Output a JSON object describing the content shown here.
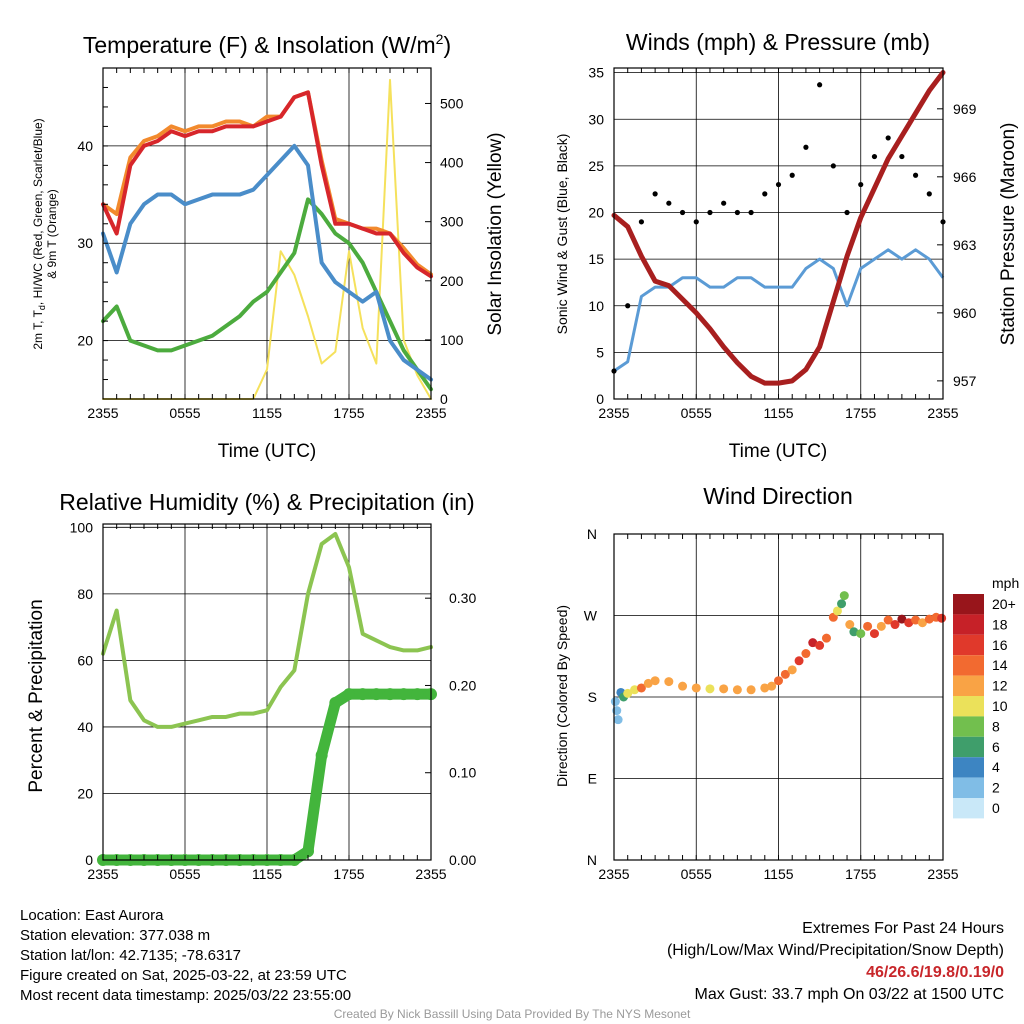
{
  "panels": {
    "temperature": {
      "title": "Temperature (F) & Insolation (W/m",
      "title_sup": "2",
      "title_end": ")",
      "ylabel_left_1": "2m T, T",
      "ylabel_left_sub": "d",
      "ylabel_left_2": ", HI/WC (Red, Green, Scarlet/Blue)",
      "ylabel_left_3": "& 9m T (Orange)",
      "ylabel_right": "Solar Insolation (Yellow)",
      "xlabel": "Time (UTC)"
    },
    "winds": {
      "title": "Winds (mph) & Pressure (mb)",
      "ylabel_left": "Sonic Wind & Gust (Blue, Black)",
      "ylabel_right": "Station Pressure (Maroon)",
      "xlabel": "Time (UTC)"
    },
    "humidity": {
      "title": "Relative Humidity (%) & Precipitation (in)",
      "ylabel_left": "Percent & Precipitation"
    },
    "direction": {
      "title": "Wind Direction",
      "ylabel_left": "Direction (Colored By Speed)",
      "colorbar_title": "mph",
      "colorbar_labels": [
        "20+",
        "18",
        "16",
        "14",
        "12",
        "10",
        "8",
        "6",
        "4",
        "2",
        "0"
      ],
      "colorbar_colors": [
        "#98151b",
        "#c62128",
        "#e0392b",
        "#f26a30",
        "#f9a345",
        "#ebe15a",
        "#72bf4e",
        "#3f9e6b",
        "#3d85c2",
        "#80bde6",
        "#c9e8f8"
      ]
    }
  },
  "footer": {
    "location": "Location: East Aurora",
    "elevation": "Station elevation: 377.038 m",
    "latlon": "Station lat/lon: 42.7135; -78.6317",
    "created": "Figure created on Sat, 2025-03-22, at 23:59 UTC",
    "recent": "Most recent data timestamp: 2025/03/22 23:55:00",
    "extremes_title": "Extremes For Past 24 Hours",
    "extremes_legend": "(High/Low/Max Wind/Precipitation/Snow Depth)",
    "extremes_values": "46/26.6/19.8/0.19/0",
    "max_gust": "Max Gust: 33.7 mph On 03/22 at 1500 UTC",
    "credit": "Created By Nick Bassill Using Data Provided By The NYS Mesonet"
  },
  "chart_data": [
    {
      "type": "line",
      "title": "Temperature (F) & Insolation (W/m2)",
      "xlabel": "Time (UTC)",
      "ylabel": "2m T, Td, HI/WC (Red, Green, Scarlet/Blue) & 9m T (Orange)",
      "y2label": "Solar Insolation (Yellow)",
      "x_ticks": [
        "2355",
        "0555",
        "1155",
        "1755",
        "2355"
      ],
      "y_ticks": [
        20,
        30,
        40
      ],
      "y2_ticks": [
        0,
        100,
        200,
        300,
        400,
        500
      ],
      "ylim": [
        14,
        48
      ],
      "y2lim": [
        0,
        560
      ],
      "grid": true,
      "x_hours": [
        0,
        1,
        2,
        3,
        4,
        5,
        6,
        7,
        8,
        9,
        10,
        11,
        12,
        13,
        14,
        15,
        16,
        17,
        18,
        19,
        20,
        21,
        22,
        23,
        24
      ],
      "series": [
        {
          "name": "2m T",
          "axis": "left",
          "color": "#d7262b",
          "values": [
            34,
            31,
            38,
            40,
            40.5,
            41.5,
            41,
            41.5,
            41.5,
            42,
            42,
            42,
            42.5,
            43,
            45,
            45.5,
            38,
            32,
            32,
            31.5,
            31,
            31,
            29,
            27.5,
            26.6
          ]
        },
        {
          "name": "9m T",
          "axis": "left",
          "color": "#f28a2d",
          "values": [
            34,
            33,
            38.8,
            40.5,
            41,
            42,
            41.5,
            42,
            42,
            42.5,
            42.5,
            42,
            43,
            43,
            45,
            45.5,
            38.5,
            32.5,
            32,
            31.5,
            31.5,
            31,
            29.5,
            27.8,
            26.8
          ]
        },
        {
          "name": "WC",
          "axis": "left",
          "color": "#4a8dc9",
          "values": [
            31,
            27,
            32,
            34,
            35,
            35,
            34,
            34.5,
            35,
            35,
            35,
            35.5,
            37,
            38.5,
            40,
            38,
            28,
            26,
            25,
            24,
            25,
            20,
            18,
            17,
            16
          ]
        },
        {
          "name": "Td",
          "axis": "left",
          "color": "#4cab3e",
          "values": [
            22,
            23.5,
            20,
            19.5,
            19,
            19,
            19.5,
            20,
            20.5,
            21.5,
            22.5,
            24,
            25,
            27,
            29,
            34.5,
            33,
            31,
            30,
            28,
            25,
            22,
            19,
            17,
            15
          ]
        },
        {
          "name": "Solar",
          "axis": "right",
          "color": "#f5e15c",
          "values": [
            0,
            0,
            0,
            0,
            0,
            0,
            0,
            0,
            0,
            0,
            0,
            0,
            50,
            250,
            210,
            140,
            60,
            80,
            250,
            120,
            60,
            540,
            100,
            40,
            0
          ]
        }
      ]
    },
    {
      "type": "line",
      "title": "Winds (mph) & Pressure (mb)",
      "xlabel": "Time (UTC)",
      "ylabel": "Sonic Wind & Gust (Blue, Black)",
      "y2label": "Station Pressure (Maroon)",
      "x_ticks": [
        "2355",
        "0555",
        "1155",
        "1755",
        "2355"
      ],
      "y_ticks": [
        0,
        5,
        10,
        15,
        20,
        25,
        30,
        35
      ],
      "y2_ticks": [
        957,
        960,
        963,
        966,
        969
      ],
      "ylim": [
        0,
        35.5
      ],
      "y2lim": [
        956.2,
        970.8
      ],
      "grid": true,
      "x_hours": [
        0,
        1,
        2,
        3,
        4,
        5,
        6,
        7,
        8,
        9,
        10,
        11,
        12,
        13,
        14,
        15,
        16,
        17,
        18,
        19,
        20,
        21,
        22,
        23,
        24
      ],
      "series": [
        {
          "name": "Sonic Wind",
          "axis": "left",
          "color": "#5b9bd5",
          "values": [
            3,
            4,
            11,
            12,
            12,
            13,
            13,
            12,
            12,
            13,
            13,
            12,
            12,
            12,
            14,
            15,
            14,
            10,
            14,
            15,
            16,
            15,
            16,
            15,
            13
          ]
        },
        {
          "name": "Gust",
          "axis": "left",
          "color": "#000000",
          "values": [
            3,
            10,
            19,
            22,
            21,
            20,
            19,
            20,
            21,
            20,
            20,
            22,
            23,
            24,
            27,
            33.7,
            25,
            20,
            23,
            26,
            28,
            26,
            24,
            22,
            19
          ]
        },
        {
          "name": "Pressure",
          "axis": "right",
          "color": "#a81f1f",
          "values": [
            964.3,
            963.8,
            962.5,
            961.4,
            961.2,
            960.6,
            960.0,
            959.3,
            958.5,
            957.8,
            957.2,
            956.9,
            956.9,
            957.0,
            957.5,
            958.5,
            960.5,
            962.5,
            964.2,
            965.5,
            966.8,
            967.8,
            968.8,
            969.8,
            970.6
          ]
        }
      ]
    },
    {
      "type": "line",
      "title": "Relative Humidity (%) & Precipitation (in)",
      "ylabel": "Percent & Precipitation",
      "x_ticks": [
        "2355",
        "0555",
        "1155",
        "1755",
        "2355"
      ],
      "y_ticks": [
        0,
        20,
        40,
        60,
        80,
        100
      ],
      "y2_ticks": [
        "0.00",
        "0.10",
        "0.20",
        "0.30"
      ],
      "ylim": [
        0,
        101
      ],
      "y2lim": [
        0,
        0.385
      ],
      "grid": true,
      "x_hours": [
        0,
        1,
        2,
        3,
        4,
        5,
        6,
        7,
        8,
        9,
        10,
        11,
        12,
        13,
        14,
        15,
        16,
        17,
        18,
        19,
        20,
        21,
        22,
        23,
        24
      ],
      "series": [
        {
          "name": "Relative Humidity",
          "axis": "left",
          "color": "#8cc451",
          "values": [
            62,
            75,
            48,
            42,
            40,
            40,
            41,
            42,
            43,
            43,
            44,
            44,
            45,
            52,
            57,
            80,
            95,
            98,
            88,
            68,
            66,
            64,
            63,
            63,
            64
          ]
        },
        {
          "name": "Precipitation",
          "axis": "right",
          "color": "#43b53c",
          "values": [
            0,
            0,
            0,
            0,
            0,
            0,
            0,
            0,
            0,
            0,
            0,
            0,
            0,
            0,
            0,
            0.01,
            0.12,
            0.18,
            0.19,
            0.19,
            0.19,
            0.19,
            0.19,
            0.19,
            0.19
          ]
        }
      ]
    },
    {
      "type": "scatter",
      "title": "Wind Direction",
      "ylabel": "Direction (Colored By Speed)",
      "x_ticks": [
        "2355",
        "0555",
        "1155",
        "1755",
        "2355"
      ],
      "y_ticks": [
        "N",
        "E",
        "S",
        "W",
        "N"
      ],
      "ylim": [
        0,
        360
      ],
      "colorbar": {
        "title": "mph",
        "labels": [
          "20+",
          "18",
          "16",
          "14",
          "12",
          "10",
          "8",
          "6",
          "4",
          "2",
          "0"
        ]
      },
      "points": [
        {
          "x": 0.1,
          "y": 175,
          "speed": 2
        },
        {
          "x": 0.2,
          "y": 165,
          "speed": 3
        },
        {
          "x": 0.3,
          "y": 155,
          "speed": 2
        },
        {
          "x": 0.5,
          "y": 185,
          "speed": 4
        },
        {
          "x": 0.7,
          "y": 180,
          "speed": 7
        },
        {
          "x": 1.0,
          "y": 184,
          "speed": 10
        },
        {
          "x": 1.5,
          "y": 188,
          "speed": 11
        },
        {
          "x": 2.0,
          "y": 190,
          "speed": 14
        },
        {
          "x": 2.5,
          "y": 195,
          "speed": 12
        },
        {
          "x": 3.0,
          "y": 198,
          "speed": 12
        },
        {
          "x": 4.0,
          "y": 197,
          "speed": 12
        },
        {
          "x": 5.0,
          "y": 192,
          "speed": 12
        },
        {
          "x": 6.0,
          "y": 190,
          "speed": 12
        },
        {
          "x": 7.0,
          "y": 189,
          "speed": 11
        },
        {
          "x": 8.0,
          "y": 189,
          "speed": 12
        },
        {
          "x": 9.0,
          "y": 188,
          "speed": 12
        },
        {
          "x": 10.0,
          "y": 188,
          "speed": 13
        },
        {
          "x": 11.0,
          "y": 190,
          "speed": 12
        },
        {
          "x": 11.5,
          "y": 192,
          "speed": 12
        },
        {
          "x": 12.0,
          "y": 198,
          "speed": 14
        },
        {
          "x": 12.5,
          "y": 205,
          "speed": 14
        },
        {
          "x": 13.0,
          "y": 210,
          "speed": 13
        },
        {
          "x": 13.5,
          "y": 220,
          "speed": 16
        },
        {
          "x": 14.0,
          "y": 228,
          "speed": 14
        },
        {
          "x": 14.5,
          "y": 240,
          "speed": 18
        },
        {
          "x": 15.0,
          "y": 237,
          "speed": 16
        },
        {
          "x": 15.5,
          "y": 245,
          "speed": 14
        },
        {
          "x": 16.0,
          "y": 268,
          "speed": 14
        },
        {
          "x": 16.3,
          "y": 275,
          "speed": 10
        },
        {
          "x": 16.6,
          "y": 283,
          "speed": 7
        },
        {
          "x": 16.8,
          "y": 292,
          "speed": 8
        },
        {
          "x": 17.2,
          "y": 260,
          "speed": 12
        },
        {
          "x": 17.5,
          "y": 252,
          "speed": 7
        },
        {
          "x": 18.0,
          "y": 250,
          "speed": 9
        },
        {
          "x": 18.5,
          "y": 258,
          "speed": 14
        },
        {
          "x": 19.0,
          "y": 250,
          "speed": 16
        },
        {
          "x": 19.5,
          "y": 258,
          "speed": 13
        },
        {
          "x": 20.0,
          "y": 265,
          "speed": 14
        },
        {
          "x": 20.5,
          "y": 260,
          "speed": 16
        },
        {
          "x": 21.0,
          "y": 266,
          "speed": 20
        },
        {
          "x": 21.5,
          "y": 262,
          "speed": 17
        },
        {
          "x": 22.0,
          "y": 265,
          "speed": 15
        },
        {
          "x": 22.5,
          "y": 262,
          "speed": 13
        },
        {
          "x": 23.0,
          "y": 266,
          "speed": 14
        },
        {
          "x": 23.5,
          "y": 268,
          "speed": 14
        },
        {
          "x": 23.9,
          "y": 267,
          "speed": 16
        }
      ]
    }
  ]
}
